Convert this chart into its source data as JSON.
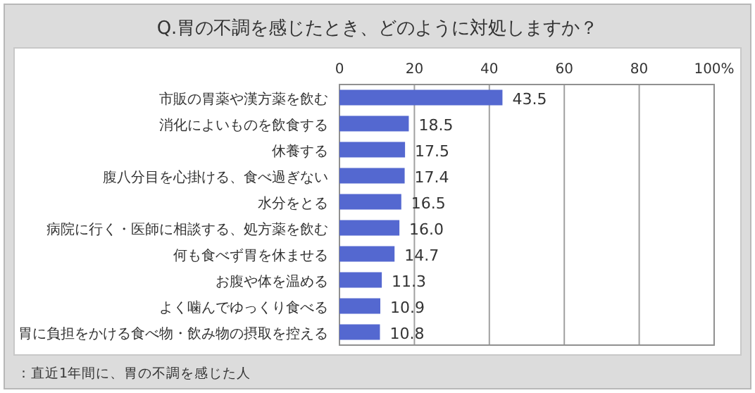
{
  "chart_data": {
    "type": "bar",
    "orientation": "horizontal",
    "title": "Q.胃の不調を感じたとき、どのように対処しますか？",
    "categories": [
      "市販の胃薬や漢方薬を飲む",
      "消化によいものを飲食する",
      "休養する",
      "腹八分目を心掛ける、食べ過ぎない",
      "水分をとる",
      "病院に行く・医師に相談する、処方薬を飲む",
      "何も食べず胃を休ませる",
      "お腹や体を温める",
      "よく噛んでゆっくり食べる",
      "胃に負担をかける食べ物・飲み物の摂取を控える"
    ],
    "values": [
      43.5,
      18.5,
      17.5,
      17.4,
      16.5,
      16.0,
      14.7,
      11.3,
      10.9,
      10.8
    ],
    "value_labels": [
      "43.5",
      "18.5",
      "17.5",
      "17.4",
      "16.5",
      "16.0",
      "14.7",
      "11.3",
      "10.9",
      "10.8"
    ],
    "color": "#5468d0",
    "xlim": [
      0,
      100
    ],
    "xticks": [
      0,
      20,
      40,
      60,
      80,
      {
        "value": 100,
        "label": "100%"
      }
    ],
    "grid": "x",
    "annotations": [
      "：直近1年間に、胃の不調を感じた人"
    ]
  }
}
